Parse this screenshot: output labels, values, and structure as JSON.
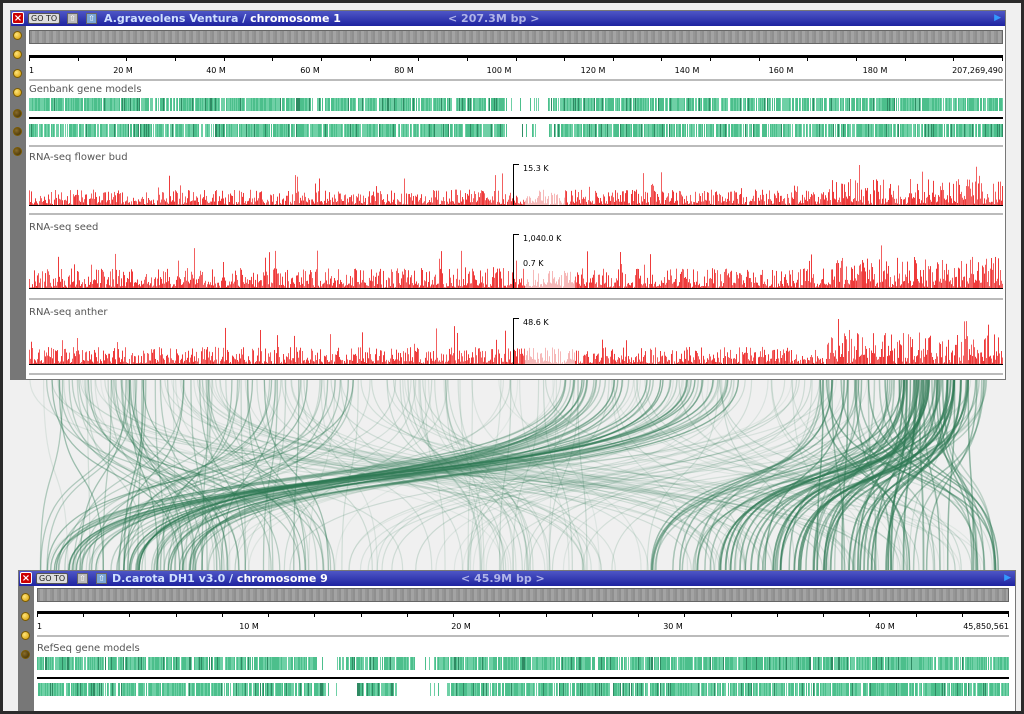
{
  "top_panel": {
    "close_icon": "close-icon",
    "goto_label": "GO TO",
    "species": "A.graveolens Ventura /",
    "chromosome": "chromosome 1",
    "size_label": "<  207.3M bp  >",
    "ruler_labels": [
      "1",
      "20 M",
      "40 M",
      "60 M",
      "80 M",
      "100 M",
      "120 M",
      "140 M",
      "160 M",
      "180 M",
      "207,269,490"
    ],
    "tracks": {
      "genes": {
        "label": "Genbank gene models"
      },
      "flower_bud": {
        "label": "RNA-seq flower bud",
        "scale": "15.3 K"
      },
      "seed": {
        "label": "RNA-seq seed",
        "scale_top": "1,040.0 K",
        "scale_mid": "0.7 K"
      },
      "anther": {
        "label": "RNA-seq anther",
        "scale": "48.6 K"
      }
    }
  },
  "bottom_panel": {
    "close_icon": "close-icon",
    "goto_label": "GO TO",
    "species": "D.carota DH1 v3.0 /",
    "chromosome": "chromosome 9",
    "size_label": "<  45.9M bp  >",
    "ruler_labels": [
      "1",
      "10 M",
      "20 M",
      "30 M",
      "40 M",
      "45,850,561"
    ],
    "tracks": {
      "genes": {
        "label": "RefSeq gene models"
      }
    }
  },
  "colors": {
    "gene": "#4cbf8c",
    "rna": "#ee3b3b",
    "link": "#2f7a55"
  }
}
